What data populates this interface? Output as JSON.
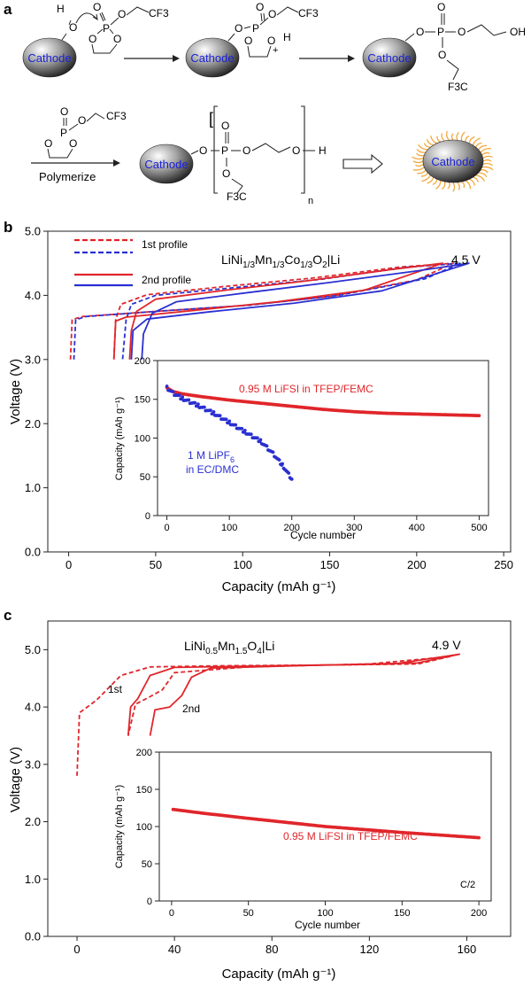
{
  "panels": {
    "a": {
      "letter": "a",
      "cathode_label": "Cathode",
      "cf3": "CF3",
      "oh": "OH",
      "f3c": "F3C",
      "plus": "+",
      "polymerize": "Polymerize",
      "n": "n",
      "h": "H"
    },
    "b": {
      "letter": "b"
    },
    "c": {
      "letter": "c"
    }
  },
  "colors": {
    "red": "#e0262b",
    "blue": "#2a2fd1",
    "cathode_text": "#1a22d6",
    "shell": "#f2a93b"
  },
  "chart_data": [
    {
      "id": "b-main",
      "type": "line",
      "title": "LiNi1/3Mn1/3Co1/3O2|Li",
      "xlabel": "Capacity (mAh g⁻¹)",
      "ylabel": "Voltage (V)",
      "xlim": [
        -12,
        254
      ],
      "ylim": [
        0,
        5
      ],
      "xticks": [
        "0",
        "50",
        "100",
        "150",
        "200",
        "250"
      ],
      "yticks": [
        "0.0",
        "1.0",
        "2.0",
        "3.0",
        "4.0",
        "5.0"
      ],
      "legend": [
        "1st profile",
        "2nd profile"
      ],
      "annotation": "4.5 V",
      "series": [
        {
          "style": "dash",
          "color": "red",
          "values": [
            [
              1,
              3.0
            ],
            [
              2,
              3.62
            ],
            [
              8,
              3.67
            ],
            [
              50,
              3.75
            ],
            [
              100,
              3.84
            ],
            [
              150,
              3.98
            ],
            [
              200,
              4.24
            ],
            [
              221,
              4.5
            ],
            [
              190,
              4.44
            ],
            [
              140,
              4.27
            ],
            [
              90,
              4.14
            ],
            [
              45,
              4.01
            ],
            [
              30,
              3.86
            ],
            [
              27,
              3.62
            ],
            [
              26,
              3.02
            ]
          ]
        },
        {
          "style": "dash",
          "color": "blue",
          "values": [
            [
              3,
              3.0
            ],
            [
              4,
              3.62
            ],
            [
              10,
              3.67
            ],
            [
              55,
              3.76
            ],
            [
              105,
              3.85
            ],
            [
              155,
              4.0
            ],
            [
              205,
              4.26
            ],
            [
              225,
              4.5
            ],
            [
              195,
              4.44
            ],
            [
              145,
              4.25
            ],
            [
              95,
              4.12
            ],
            [
              50,
              4.0
            ],
            [
              36,
              3.86
            ],
            [
              33,
              3.62
            ],
            [
              31,
              3.0
            ]
          ]
        },
        {
          "style": "solid",
          "color": "red",
          "values": [
            [
              26,
              3.0
            ],
            [
              27,
              3.6
            ],
            [
              33,
              3.66
            ],
            [
              70,
              3.76
            ],
            [
              120,
              3.9
            ],
            [
              170,
              4.08
            ],
            [
              215,
              4.5
            ],
            [
              185,
              4.4
            ],
            [
              135,
              4.22
            ],
            [
              90,
              4.08
            ],
            [
              50,
              3.94
            ],
            [
              39,
              3.75
            ],
            [
              36,
              3.45
            ],
            [
              35,
              3.0
            ]
          ]
        },
        {
          "style": "solid",
          "color": "blue",
          "values": [
            [
              36,
              3.0
            ],
            [
              37,
              3.45
            ],
            [
              45,
              3.63
            ],
            [
              80,
              3.74
            ],
            [
              130,
              3.88
            ],
            [
              180,
              4.07
            ],
            [
              230,
              4.5
            ],
            [
              200,
              4.38
            ],
            [
              150,
              4.2
            ],
            [
              105,
              4.05
            ],
            [
              62,
              3.9
            ],
            [
              48,
              3.72
            ],
            [
              43,
              3.4
            ],
            [
              42,
              3.0
            ]
          ]
        }
      ]
    },
    {
      "id": "b-inset",
      "type": "scatter",
      "xlabel": "Cycle number",
      "ylabel": "Capacity (mAh g⁻¹)",
      "xlim": [
        -15,
        515
      ],
      "ylim": [
        0,
        200
      ],
      "xticks": [
        "0",
        "100",
        "200",
        "300",
        "400",
        "500"
      ],
      "yticks": [
        "0",
        "50",
        "100",
        "150",
        "200"
      ],
      "series": [
        {
          "name": "0.95 M LiFSI in TFEP/FEMC",
          "color": "red",
          "values": [
            [
              0,
              165
            ],
            [
              10,
              160
            ],
            [
              25,
              157
            ],
            [
              50,
              154
            ],
            [
              100,
              149
            ],
            [
              150,
              145
            ],
            [
              200,
              141
            ],
            [
              250,
              137
            ],
            [
              300,
              134
            ],
            [
              350,
              132
            ],
            [
              400,
              131
            ],
            [
              450,
              130
            ],
            [
              500,
              129
            ]
          ]
        },
        {
          "name": "1 M LiPF6 in EC/DMC",
          "color": "blue",
          "values": [
            [
              0,
              165
            ],
            [
              10,
              158
            ],
            [
              25,
              151
            ],
            [
              50,
              142
            ],
            [
              75,
              132
            ],
            [
              100,
              120
            ],
            [
              125,
              108
            ],
            [
              150,
              96
            ],
            [
              170,
              80
            ],
            [
              185,
              65
            ],
            [
              195,
              53
            ],
            [
              200,
              47
            ]
          ]
        }
      ]
    },
    {
      "id": "c-main",
      "type": "line",
      "title": "LiNi0.5Mn1.5O4|Li",
      "xlabel": "Capacity (mAh g⁻¹)",
      "ylabel": "Voltage (V)",
      "xlim": [
        -12,
        178
      ],
      "ylim": [
        0,
        5.5
      ],
      "xticks": [
        "0",
        "40",
        "80",
        "120",
        "160"
      ],
      "yticks": [
        "0.0",
        "1.0",
        "2.0",
        "3.0",
        "4.0",
        "5.0"
      ],
      "annotation": "4.9 V",
      "labels": [
        "1st",
        "2nd"
      ],
      "series": [
        {
          "style": "dash",
          "color": "red",
          "values": [
            [
              0,
              2.8
            ],
            [
              1,
              3.9
            ],
            [
              8,
              4.12
            ],
            [
              18,
              4.55
            ],
            [
              30,
              4.7
            ],
            [
              60,
              4.72
            ],
            [
              100,
              4.73
            ],
            [
              140,
              4.75
            ],
            [
              153,
              4.88
            ],
            [
              120,
              4.75
            ],
            [
              70,
              4.7
            ],
            [
              40,
              4.6
            ],
            [
              35,
              4.3
            ],
            [
              30,
              4.18
            ],
            [
              24,
              4.05
            ],
            [
              21,
              3.5
            ]
          ]
        },
        {
          "style": "solid",
          "color": "red",
          "values": [
            [
              21,
              3.5
            ],
            [
              22,
              4.0
            ],
            [
              25,
              4.15
            ],
            [
              30,
              4.55
            ],
            [
              40,
              4.69
            ],
            [
              80,
              4.72
            ],
            [
              130,
              4.75
            ],
            [
              157,
              4.92
            ],
            [
              140,
              4.77
            ],
            [
              90,
              4.72
            ],
            [
              55,
              4.68
            ],
            [
              47,
              4.52
            ],
            [
              43,
              4.2
            ],
            [
              38,
              4.0
            ],
            [
              32,
              3.95
            ],
            [
              30,
              3.5
            ]
          ]
        }
      ]
    },
    {
      "id": "c-inset",
      "type": "scatter",
      "xlabel": "Cycle number",
      "ylabel": "Capacity (mAh g⁻¹)",
      "xlim": [
        -8,
        208
      ],
      "ylim": [
        0,
        200
      ],
      "xticks": [
        "0",
        "50",
        "100",
        "150",
        "200"
      ],
      "yticks": [
        "0",
        "50",
        "100",
        "150",
        "200"
      ],
      "annotation": "C/2",
      "series": [
        {
          "name": "0.95 M LiFSI in TFEP/FEMC",
          "color": "red",
          "values": [
            [
              1,
              123
            ],
            [
              20,
              118
            ],
            [
              50,
              111
            ],
            [
              100,
              100
            ],
            [
              150,
              92
            ],
            [
              200,
              85
            ]
          ]
        }
      ]
    }
  ]
}
